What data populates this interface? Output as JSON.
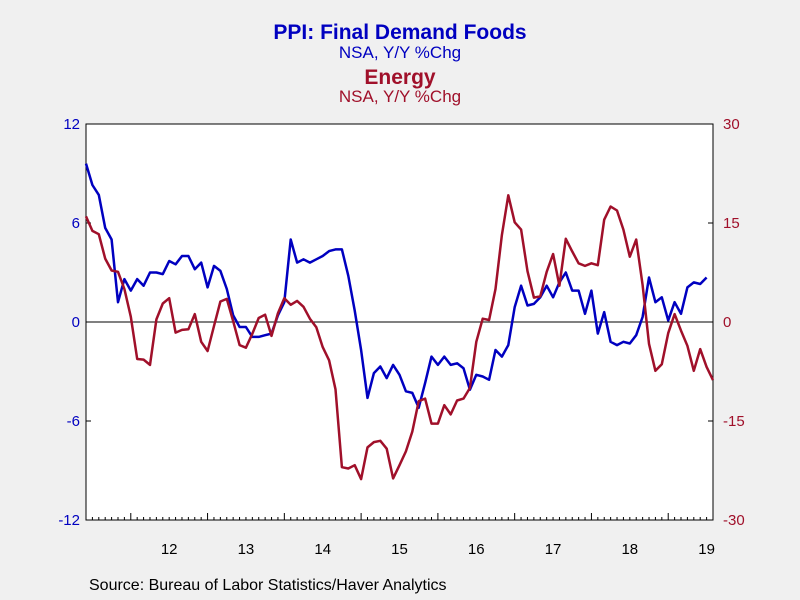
{
  "titles": {
    "line1": "PPI: Final Demand Foods",
    "line1_sub": "NSA, Y/Y %Chg",
    "line2": "Energy",
    "line2_sub": "NSA, Y/Y %Chg"
  },
  "source": "Source:  Bureau of Labor Statistics/Haver Analytics",
  "colors": {
    "foods": "#0000c0",
    "energy": "#a0102a",
    "background": "#f0f0f0",
    "plot": "#ffffff"
  },
  "chart_data": {
    "type": "line",
    "title": "PPI: Final Demand Foods / Energy",
    "x_ticks": [
      "12",
      "13",
      "14",
      "15",
      "16",
      "17",
      "18",
      "19"
    ],
    "x_start": "2011-06",
    "frequency": "monthly",
    "left_axis": {
      "ylim": [
        -12,
        12
      ],
      "ticks": [
        "12",
        "6",
        "0",
        "-6",
        "-12"
      ],
      "tick_values": [
        12,
        6,
        0,
        -6,
        -12
      ]
    },
    "right_axis": {
      "ylim": [
        -30,
        30
      ],
      "ticks": [
        "30",
        "15",
        "0",
        "-15",
        "-30"
      ],
      "tick_values": [
        30,
        15,
        0,
        -15,
        -30
      ]
    },
    "grid": false,
    "zero_line": true,
    "series": [
      {
        "name": "PPI: Final Demand Foods",
        "axis": "left",
        "color": "#0000c0",
        "values": [
          9.6,
          8.3,
          7.7,
          5.7,
          5.0,
          1.2,
          2.6,
          1.9,
          2.6,
          2.2,
          3.0,
          3.0,
          2.9,
          3.7,
          3.5,
          4.0,
          4.0,
          3.2,
          3.6,
          2.1,
          3.4,
          3.1,
          2.0,
          0.4,
          -0.3,
          -0.3,
          -0.9,
          -0.9,
          -0.8,
          -0.7,
          0.4,
          1.2,
          5.0,
          3.6,
          3.8,
          3.6,
          3.8,
          4.0,
          4.3,
          4.4,
          4.4,
          2.8,
          0.7,
          -1.7,
          -4.6,
          -3.1,
          -2.7,
          -3.4,
          -2.6,
          -3.2,
          -4.2,
          -4.3,
          -5.2,
          -3.7,
          -2.1,
          -2.6,
          -2.1,
          -2.6,
          -2.5,
          -2.8,
          -4.1,
          -3.2,
          -3.3,
          -3.5,
          -1.7,
          -2.1,
          -1.4,
          0.9,
          2.2,
          1.0,
          1.1,
          1.5,
          2.2,
          1.5,
          2.4,
          3.0,
          1.9,
          1.9,
          0.5,
          1.9,
          -0.7,
          0.6,
          -1.2,
          -1.4,
          -1.2,
          -1.3,
          -0.8,
          0.3,
          2.7,
          1.2,
          1.5,
          0.1,
          1.2,
          0.5,
          2.1,
          2.4,
          2.3,
          2.7
        ]
      },
      {
        "name": "Energy",
        "axis": "right",
        "color": "#a0102a",
        "values": [
          16.0,
          13.8,
          13.3,
          9.6,
          7.8,
          7.6,
          5.0,
          0.8,
          -5.6,
          -5.7,
          -6.5,
          0.4,
          2.8,
          3.6,
          -1.6,
          -1.2,
          -1.1,
          1.2,
          -3.0,
          -4.4,
          -0.6,
          3.1,
          3.5,
          0.1,
          -3.5,
          -3.9,
          -1.8,
          0.6,
          1.1,
          -2.1,
          1.3,
          3.6,
          2.6,
          3.2,
          2.3,
          0.5,
          -0.8,
          -3.8,
          -5.8,
          -10.2,
          -22.0,
          -22.2,
          -21.7,
          -23.8,
          -19.0,
          -18.2,
          -18.0,
          -19.2,
          -23.7,
          -21.7,
          -19.6,
          -16.6,
          -12.0,
          -11.6,
          -15.4,
          -15.4,
          -12.6,
          -14.0,
          -11.9,
          -11.6,
          -10.0,
          -3.0,
          0.5,
          0.3,
          5.0,
          13.2,
          19.2,
          15.1,
          14.0,
          7.7,
          3.7,
          3.9,
          7.6,
          10.3,
          5.5,
          12.6,
          10.7,
          8.9,
          8.5,
          8.9,
          8.6,
          15.5,
          17.5,
          16.9,
          14.0,
          9.9,
          12.5,
          5.6,
          -3.3,
          -7.4,
          -6.4,
          -1.7,
          1.2,
          -1.3,
          -3.6,
          -7.4,
          -4.1,
          -6.8,
          -8.8
        ]
      }
    ]
  }
}
